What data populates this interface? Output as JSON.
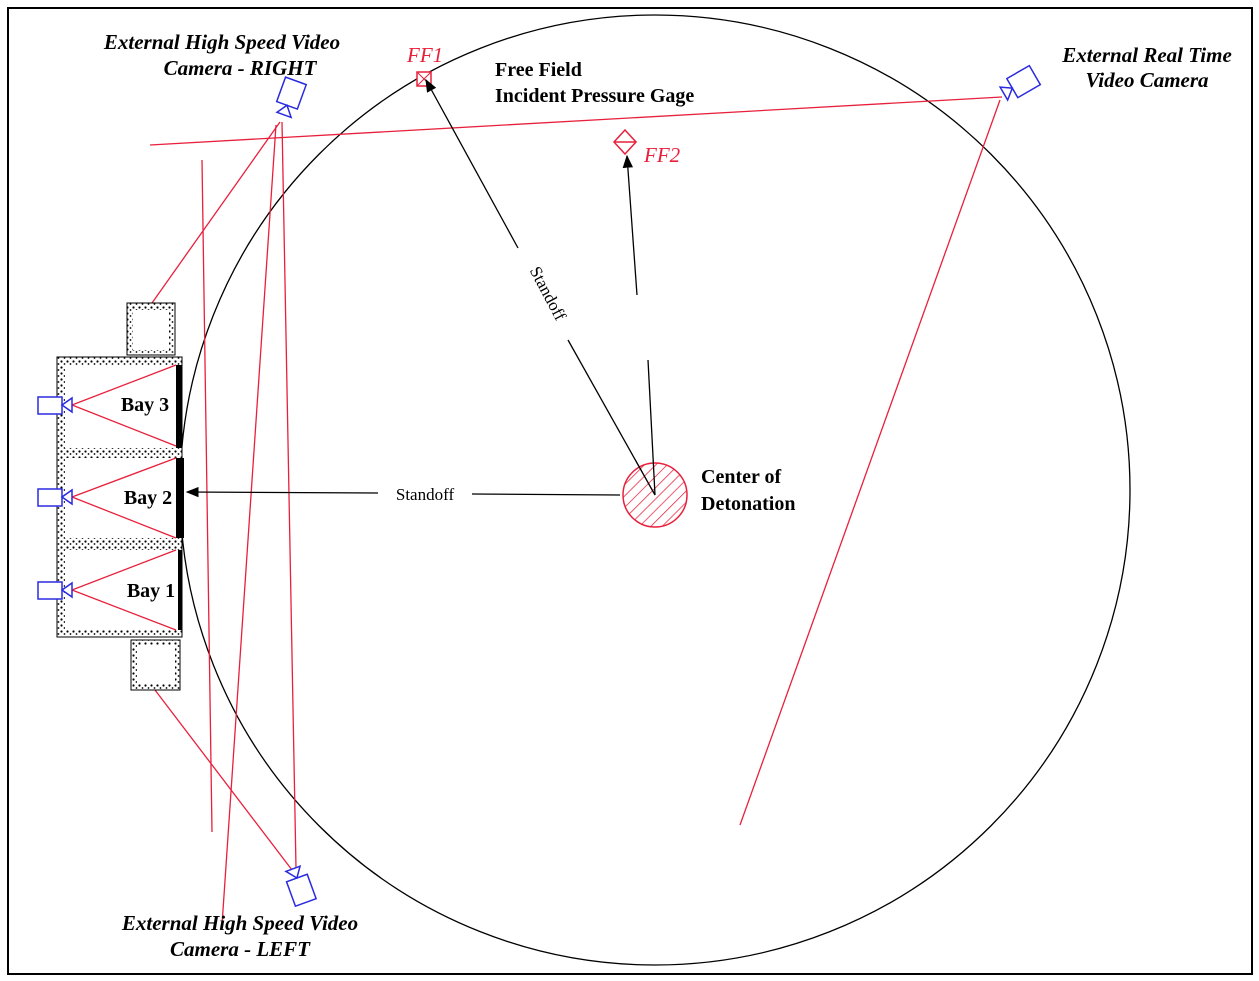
{
  "labels": {
    "camera_right": [
      "External High Speed Video",
      "Camera - RIGHT"
    ],
    "ff1": "FF1",
    "free_field": [
      "Free Field",
      "Incident Pressure Gage"
    ],
    "camera_realtime": [
      "External Real Time",
      "Video Camera"
    ],
    "ff2": "FF2",
    "standoff_diagonal": "Standoff",
    "standoff_horizontal": "Standoff",
    "bays": [
      "Bay 3",
      "Bay 2",
      "Bay 1"
    ],
    "center": [
      "Center of",
      "Detonation"
    ],
    "camera_left": [
      "External High Speed Video",
      "Camera - LEFT"
    ]
  }
}
